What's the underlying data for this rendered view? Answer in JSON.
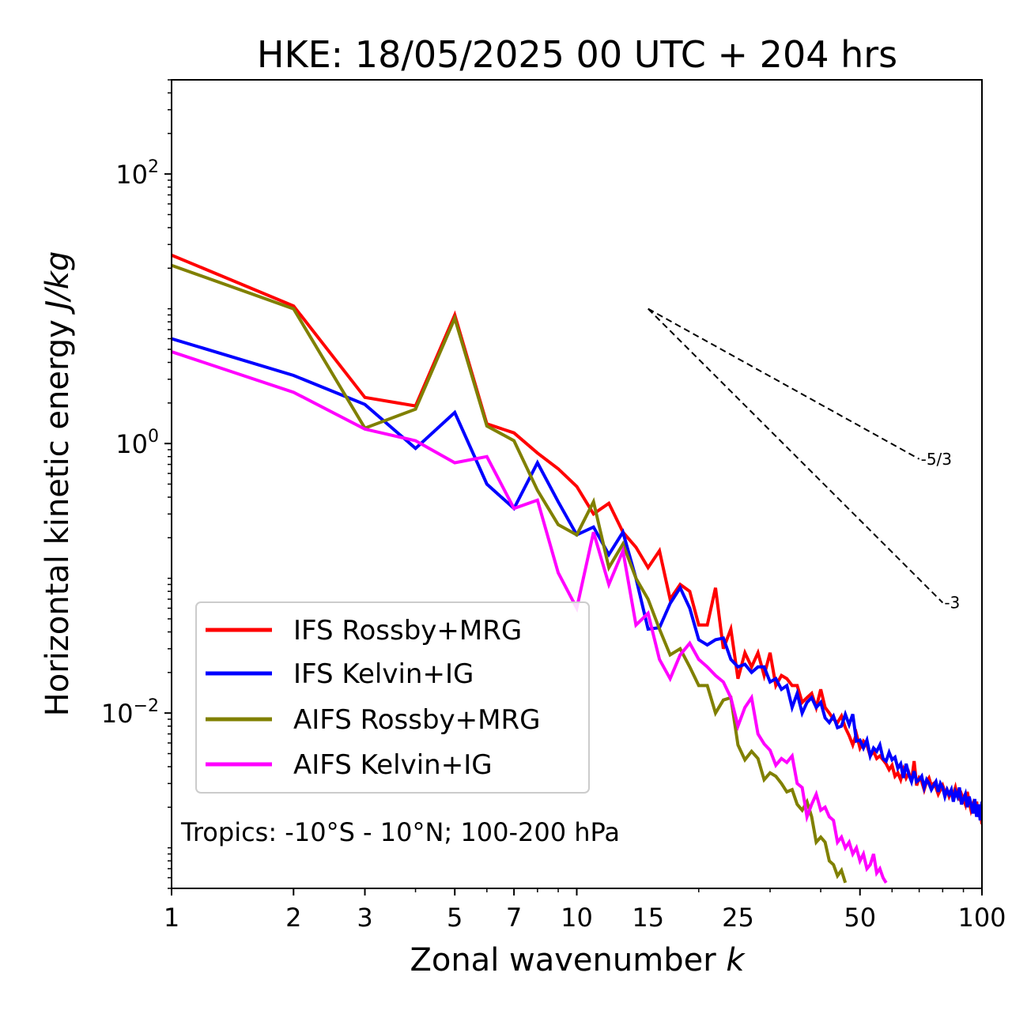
{
  "chart_data": {
    "type": "line",
    "title": "HKE: 18/05/2025 00 UTC + 204 hrs",
    "xlabel": "Zonal wavenumber k",
    "xlabel_parts": {
      "text": "Zonal wavenumber ",
      "var": "k"
    },
    "ylabel": "Horizontal kinetic energy J/kg",
    "ylabel_parts": {
      "text": "Horizontal kinetic energy ",
      "unit": "J/kg"
    },
    "x_scale": "log",
    "y_scale": "log",
    "xlim": [
      1,
      100
    ],
    "ylim": [
      0.0005,
      500
    ],
    "x_ticks": [
      1,
      2,
      3,
      5,
      7,
      10,
      15,
      25,
      50,
      100
    ],
    "x_tick_labels": [
      "1",
      "2",
      "3",
      "5",
      "7",
      "10",
      "15",
      "25",
      "50",
      "100"
    ],
    "y_ticks": [
      {
        "value": 0.01,
        "mantissa": "10",
        "exponent": "−2"
      },
      {
        "value": 1,
        "mantissa": "10",
        "exponent": "0"
      },
      {
        "value": 100,
        "mantissa": "10",
        "exponent": "2"
      }
    ],
    "annotation": "Tropics: -10°S - 10°N; 100-200 hPa",
    "reference_slopes": [
      {
        "label": "-5/3",
        "slope": -1.6667,
        "x0": 15,
        "y0": 10,
        "x1": 70
      },
      {
        "label": "-3",
        "slope": -3,
        "x0": 15,
        "y0": 10,
        "x1": 80
      }
    ],
    "legend_position": "lower-left",
    "series": [
      {
        "name": "IFS Rossby+MRG",
        "color": "#ff0000",
        "x": [
          1,
          2,
          3,
          4,
          5,
          6,
          7,
          8,
          9,
          10,
          11,
          12,
          13,
          14,
          15,
          16,
          17,
          18,
          19,
          20,
          21,
          22,
          23,
          24,
          25,
          26,
          27,
          28,
          29,
          30,
          31,
          32,
          33,
          34,
          35,
          36,
          37,
          38,
          39,
          40,
          41,
          42,
          43,
          44,
          45,
          46,
          47,
          48,
          49,
          50,
          51,
          52,
          53,
          54,
          55,
          56,
          57,
          58,
          59,
          60,
          61,
          62,
          63,
          64,
          65,
          66,
          67,
          68,
          69,
          70,
          71,
          72,
          73,
          74,
          75,
          76,
          77,
          78,
          79,
          80,
          81,
          82,
          83,
          84,
          85,
          86,
          87,
          88,
          89,
          90,
          91,
          92,
          93,
          94,
          95,
          96,
          97,
          98,
          99,
          100
        ],
        "values": [
          25,
          10.5,
          2.2,
          1.9,
          9,
          1.4,
          1.2,
          0.85,
          0.65,
          0.48,
          0.3,
          0.36,
          0.22,
          0.17,
          0.12,
          0.16,
          0.07,
          0.09,
          0.08,
          0.045,
          0.045,
          0.085,
          0.03,
          0.042,
          0.018,
          0.028,
          0.022,
          0.028,
          0.019,
          0.028,
          0.016,
          0.019,
          0.018,
          0.016,
          0.016,
          0.012,
          0.013,
          0.014,
          0.011,
          0.015,
          0.011,
          0.01,
          0.009,
          0.0085,
          0.0095,
          0.0078,
          0.0068,
          0.0058,
          0.007,
          0.0055,
          0.0062,
          0.0058,
          0.0048,
          0.0052,
          0.0046,
          0.0048,
          0.0045,
          0.0042,
          0.0038,
          0.0041,
          0.0034,
          0.0036,
          0.0032,
          0.0038,
          0.0033,
          0.0036,
          0.0031,
          0.0044,
          0.0029,
          0.0033,
          0.0031,
          0.0027,
          0.0031,
          0.0033,
          0.0029,
          0.003,
          0.0028,
          0.0025,
          0.0027,
          0.0029,
          0.0026,
          0.0027,
          0.0024,
          0.0026,
          0.0025,
          0.0028,
          0.0024,
          0.0023,
          0.0025,
          0.0023,
          0.0021,
          0.0026,
          0.0022,
          0.0019,
          0.0021,
          0.0018,
          0.0022,
          0.0017,
          0.0019,
          0.0015
        ]
      },
      {
        "name": "IFS Kelvin+IG",
        "color": "#0000ff",
        "x": [
          1,
          2,
          3,
          4,
          5,
          6,
          7,
          8,
          9,
          10,
          11,
          12,
          13,
          14,
          15,
          16,
          17,
          18,
          19,
          20,
          21,
          22,
          23,
          24,
          25,
          26,
          27,
          28,
          29,
          30,
          31,
          32,
          33,
          34,
          35,
          36,
          37,
          38,
          39,
          40,
          41,
          42,
          43,
          44,
          45,
          46,
          47,
          48,
          49,
          50,
          51,
          52,
          53,
          54,
          55,
          56,
          57,
          58,
          59,
          60,
          61,
          62,
          63,
          64,
          65,
          66,
          67,
          68,
          69,
          70,
          71,
          72,
          73,
          74,
          75,
          76,
          77,
          78,
          79,
          80,
          81,
          82,
          83,
          84,
          85,
          86,
          87,
          88,
          89,
          90,
          91,
          92,
          93,
          94,
          95,
          96,
          97,
          98,
          99,
          100
        ],
        "values": [
          6,
          3.2,
          1.95,
          0.92,
          1.7,
          0.5,
          0.33,
          0.72,
          0.37,
          0.21,
          0.24,
          0.15,
          0.22,
          0.1,
          0.042,
          0.043,
          0.065,
          0.085,
          0.06,
          0.035,
          0.032,
          0.035,
          0.036,
          0.025,
          0.022,
          0.023,
          0.02,
          0.022,
          0.022,
          0.017,
          0.018,
          0.015,
          0.016,
          0.011,
          0.014,
          0.01,
          0.012,
          0.013,
          0.011,
          0.012,
          0.0092,
          0.0085,
          0.0095,
          0.0078,
          0.008,
          0.0098,
          0.0082,
          0.0098,
          0.0062,
          0.0063,
          0.0055,
          0.0063,
          0.0048,
          0.0055,
          0.0052,
          0.0058,
          0.0046,
          0.0044,
          0.0051,
          0.0045,
          0.0047,
          0.0039,
          0.0042,
          0.0033,
          0.0042,
          0.0035,
          0.0031,
          0.0037,
          0.0031,
          0.0032,
          0.0034,
          0.0028,
          0.0032,
          0.003,
          0.0027,
          0.0029,
          0.0031,
          0.0026,
          0.003,
          0.0028,
          0.0024,
          0.0027,
          0.0025,
          0.0027,
          0.0022,
          0.0026,
          0.0024,
          0.0028,
          0.0021,
          0.0023,
          0.0025,
          0.002,
          0.0024,
          0.0021,
          0.0018,
          0.0023,
          0.0017,
          0.0021,
          0.0016,
          0.0022
        ]
      },
      {
        "name": "AIFS Rossby+MRG",
        "color": "#808000",
        "x": [
          1,
          2,
          3,
          4,
          5,
          6,
          7,
          8,
          9,
          10,
          11,
          12,
          13,
          14,
          15,
          16,
          17,
          18,
          19,
          20,
          21,
          22,
          23,
          24,
          25,
          26,
          27,
          28,
          29,
          30,
          31,
          32,
          33,
          34,
          35,
          36,
          37,
          38,
          39,
          40,
          41,
          42,
          43,
          44,
          45,
          46
        ],
        "values": [
          21,
          10,
          1.3,
          1.8,
          8.5,
          1.35,
          1.05,
          0.45,
          0.25,
          0.21,
          0.37,
          0.12,
          0.18,
          0.1,
          0.07,
          0.042,
          0.027,
          0.03,
          0.022,
          0.016,
          0.016,
          0.01,
          0.0125,
          0.013,
          0.0058,
          0.0045,
          0.0052,
          0.0046,
          0.0032,
          0.0036,
          0.0034,
          0.003,
          0.0026,
          0.0027,
          0.0021,
          0.0019,
          0.0022,
          0.0017,
          0.0011,
          0.0012,
          0.0011,
          0.0008,
          0.00075,
          0.00062,
          0.00068,
          0.00055
        ]
      },
      {
        "name": "AIFS Kelvin+IG",
        "color": "#ff00ff",
        "x": [
          1,
          2,
          3,
          4,
          5,
          6,
          7,
          8,
          9,
          10,
          11,
          12,
          13,
          14,
          15,
          16,
          17,
          18,
          19,
          20,
          21,
          22,
          23,
          24,
          25,
          26,
          27,
          28,
          29,
          30,
          31,
          32,
          33,
          34,
          35,
          36,
          37,
          38,
          39,
          40,
          41,
          42,
          43,
          44,
          45,
          46,
          47,
          48,
          49,
          50,
          51,
          52,
          53,
          54,
          55,
          56,
          57,
          58
        ],
        "values": [
          4.8,
          2.4,
          1.28,
          1.05,
          0.72,
          0.8,
          0.33,
          0.38,
          0.11,
          0.06,
          0.22,
          0.09,
          0.16,
          0.045,
          0.055,
          0.025,
          0.018,
          0.027,
          0.033,
          0.025,
          0.022,
          0.019,
          0.017,
          0.013,
          0.008,
          0.011,
          0.013,
          0.007,
          0.0059,
          0.0053,
          0.0041,
          0.0046,
          0.0043,
          0.0048,
          0.003,
          0.0028,
          0.0017,
          0.0021,
          0.0025,
          0.0019,
          0.002,
          0.0017,
          0.0016,
          0.0011,
          0.0012,
          0.001,
          0.0011,
          0.0009,
          0.001,
          0.0008,
          0.0009,
          0.0007,
          0.00075,
          0.0009,
          0.00065,
          0.0007,
          0.0006,
          0.00055
        ]
      }
    ]
  }
}
